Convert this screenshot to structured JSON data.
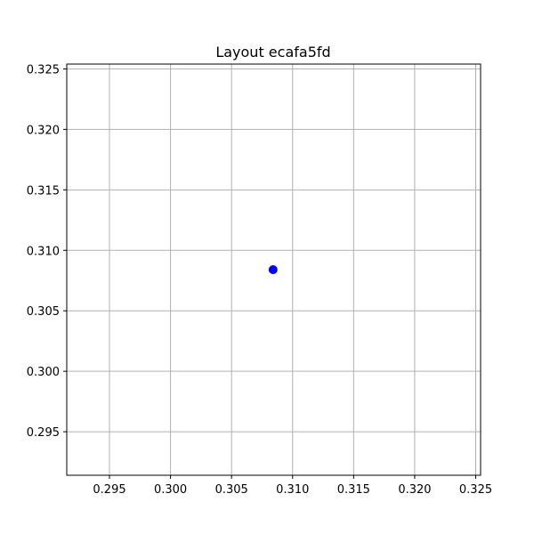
{
  "chart_data": {
    "type": "scatter",
    "title": "Layout ecafa5fd",
    "xlabel": "",
    "ylabel": "",
    "xlim": [
      0.2915,
      0.3254
    ],
    "ylim": [
      0.2914,
      0.3254
    ],
    "grid": true,
    "x_ticks": [
      "0.295",
      "0.300",
      "0.305",
      "0.310",
      "0.315",
      "0.320",
      "0.325"
    ],
    "y_ticks": [
      "0.295",
      "0.300",
      "0.305",
      "0.310",
      "0.315",
      "0.320",
      "0.325"
    ],
    "series": [
      {
        "color": "#0000ff",
        "points": [
          {
            "x": 0.3084,
            "y": 0.3084
          }
        ]
      }
    ]
  }
}
